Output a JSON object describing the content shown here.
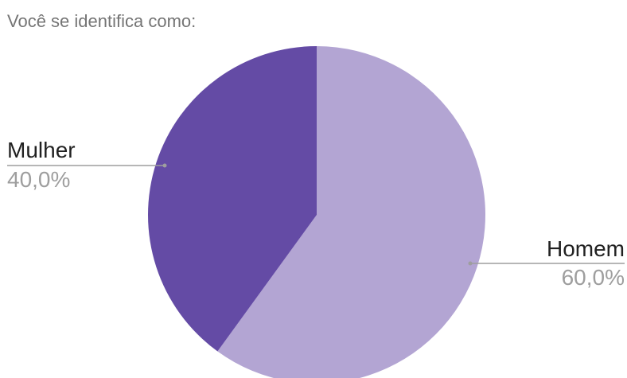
{
  "chart_data": {
    "type": "pie",
    "title": "Você se identifica como:",
    "start_angle_deg": 0,
    "direction": "clockwise",
    "slices": [
      {
        "label": "Homem",
        "value": 60.0,
        "display": "60,0%",
        "color": "#b3a5d3"
      },
      {
        "label": "Mulher",
        "value": 40.0,
        "display": "40,0%",
        "color": "#644ba5"
      }
    ]
  }
}
